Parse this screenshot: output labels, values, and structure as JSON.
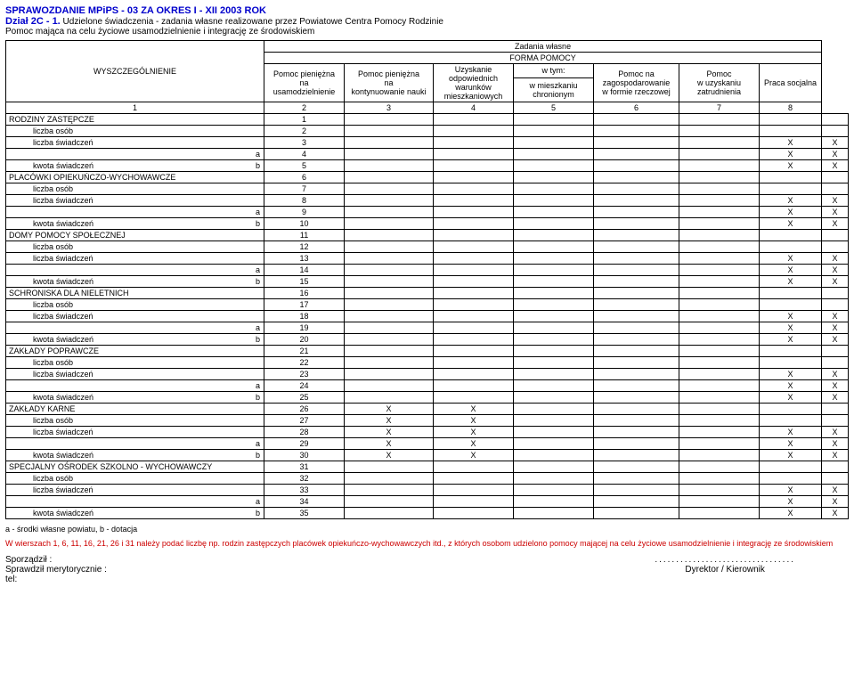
{
  "header": {
    "title": "SPRAWOZDANIE MPiPS - 03 ZA OKRES I - XII 2003 ROK",
    "section": "Dział 2C - 1.",
    "sectionDesc": "Udzielone świadczenia -  zadania własne realizowane przez Powiatowe Centra Pomocy Rodzinie",
    "subtitle": "Pomoc mająca na celu życiowe usamodzielnienie i integrację ze środowiskiem"
  },
  "tableHead": {
    "corner": "WYSZCZEGÓLNIENIE",
    "top1": "Zadania własne",
    "top2": "FORMA POMOCY",
    "c2a": "Pomoc pieniężna",
    "c2b": "na",
    "c2c": "usamodzielnienie",
    "c3a": "Pomoc pieniężna",
    "c3b": "na",
    "c3c": "kontynuowanie nauki",
    "c4a": "Uzyskanie",
    "c4b": "odpowiednich",
    "c4c": "warunków",
    "c4d": "mieszkaniowych",
    "c5a": "w tym:",
    "c5b": "w mieszkaniu",
    "c5c": "chronionym",
    "c6a": "Pomoc na",
    "c6b": "zagospodarowanie",
    "c6c": "w formie rzeczowej",
    "c7a": "Pomoc",
    "c7b": "w uzyskaniu",
    "c7c": "zatrudnienia",
    "c8": "Praca socjalna",
    "n1": "1",
    "n2": "2",
    "n3": "3",
    "n4": "4",
    "n5": "5",
    "n6": "6",
    "n7": "7",
    "n8": "8"
  },
  "labels": {
    "lo": "liczba osób",
    "ls": "liczba świadczeń",
    "ks": "kwota świadczeń",
    "a": "a",
    "b": "b"
  },
  "rows": [
    {
      "n": "1",
      "label": "RODZINY ZASTĘPCZE",
      "type": "main"
    },
    {
      "n": "2",
      "label": "lo",
      "type": "sub"
    },
    {
      "n": "3",
      "label": "ls",
      "type": "sub",
      "x": {
        "7": true,
        "8": true
      }
    },
    {
      "n": "4",
      "label": "a",
      "type": "ab",
      "x": {
        "7": true,
        "8": true
      }
    },
    {
      "n": "5",
      "label": "ks",
      "type": "subb",
      "x": {
        "7": true,
        "8": true
      }
    },
    {
      "n": "6",
      "label": "PLACÓWKI OPIEKUŃCZO-WYCHOWAWCZE",
      "type": "main"
    },
    {
      "n": "7",
      "label": "lo",
      "type": "sub"
    },
    {
      "n": "8",
      "label": "ls",
      "type": "sub",
      "x": {
        "7": true,
        "8": true
      }
    },
    {
      "n": "9",
      "label": "a",
      "type": "ab",
      "x": {
        "7": true,
        "8": true
      }
    },
    {
      "n": "10",
      "label": "ks",
      "type": "subb",
      "x": {
        "7": true,
        "8": true
      }
    },
    {
      "n": "11",
      "label": "DOMY POMOCY SPOŁECZNEJ",
      "type": "main"
    },
    {
      "n": "12",
      "label": "lo",
      "type": "sub"
    },
    {
      "n": "13",
      "label": "ls",
      "type": "sub",
      "x": {
        "7": true,
        "8": true
      }
    },
    {
      "n": "14",
      "label": "a",
      "type": "ab",
      "x": {
        "7": true,
        "8": true
      }
    },
    {
      "n": "15",
      "label": "ks",
      "type": "subb",
      "x": {
        "7": true,
        "8": true
      }
    },
    {
      "n": "16",
      "label": "SCHRONISKA DLA NIELETNICH",
      "type": "main"
    },
    {
      "n": "17",
      "label": "lo",
      "type": "sub"
    },
    {
      "n": "18",
      "label": "ls",
      "type": "sub",
      "x": {
        "7": true,
        "8": true
      }
    },
    {
      "n": "19",
      "label": "a",
      "type": "ab",
      "x": {
        "7": true,
        "8": true
      }
    },
    {
      "n": "20",
      "label": "ks",
      "type": "subb",
      "x": {
        "7": true,
        "8": true
      }
    },
    {
      "n": "21",
      "label": "ZAKŁADY POPRAWCZE",
      "type": "main"
    },
    {
      "n": "22",
      "label": "lo",
      "type": "sub"
    },
    {
      "n": "23",
      "label": "ls",
      "type": "sub",
      "x": {
        "7": true,
        "8": true
      }
    },
    {
      "n": "24",
      "label": "a",
      "type": "ab",
      "x": {
        "7": true,
        "8": true
      }
    },
    {
      "n": "25",
      "label": "ks",
      "type": "subb",
      "x": {
        "7": true,
        "8": true
      }
    },
    {
      "n": "26",
      "label": "ZAKŁADY KARNE",
      "type": "main",
      "x": {
        "2": true,
        "3": true
      }
    },
    {
      "n": "27",
      "label": "lo",
      "type": "sub",
      "x": {
        "2": true,
        "3": true
      }
    },
    {
      "n": "28",
      "label": "ls",
      "type": "sub",
      "x": {
        "2": true,
        "3": true,
        "7": true,
        "8": true
      }
    },
    {
      "n": "29",
      "label": "a",
      "type": "ab",
      "x": {
        "2": true,
        "3": true,
        "7": true,
        "8": true
      }
    },
    {
      "n": "30",
      "label": "ks",
      "type": "subb",
      "x": {
        "2": true,
        "3": true,
        "7": true,
        "8": true
      }
    },
    {
      "n": "31",
      "label": "SPECJALNY OŚRODEK SZKOLNO - WYCHOWAWCZY",
      "type": "main"
    },
    {
      "n": "32",
      "label": "lo",
      "type": "sub"
    },
    {
      "n": "33",
      "label": "ls",
      "type": "sub",
      "x": {
        "7": true,
        "8": true
      }
    },
    {
      "n": "34",
      "label": "a",
      "type": "ab",
      "x": {
        "7": true,
        "8": true
      }
    },
    {
      "n": "35",
      "label": "ks",
      "type": "subb",
      "x": {
        "7": true,
        "8": true
      }
    }
  ],
  "footer": {
    "note1": "a - środki własne powiatu, b - dotacja",
    "note2": "W wierszach 1, 6, 11, 16, 21, 26 i 31 należy podać liczbę np. rodzin zastępczych placówek opiekuńczo-wychowawczych itd., z których osobom udzielono pomocy mającej na celu życiowe usamodzielnienie i integrację ze środowiskiem",
    "s1": "Sporządził :",
    "s2": "Sprawdził merytorycznie :",
    "s3": "tel:",
    "dots": ".................................",
    "dir": "Dyrektor / Kierownik"
  },
  "style": {
    "col_widths": [
      "230px",
      "30px",
      "30px",
      "90px",
      "100px",
      "90px",
      "90px",
      "96px",
      "90px",
      "70px"
    ],
    "x_mark": "X",
    "bg": "#ffffff"
  }
}
